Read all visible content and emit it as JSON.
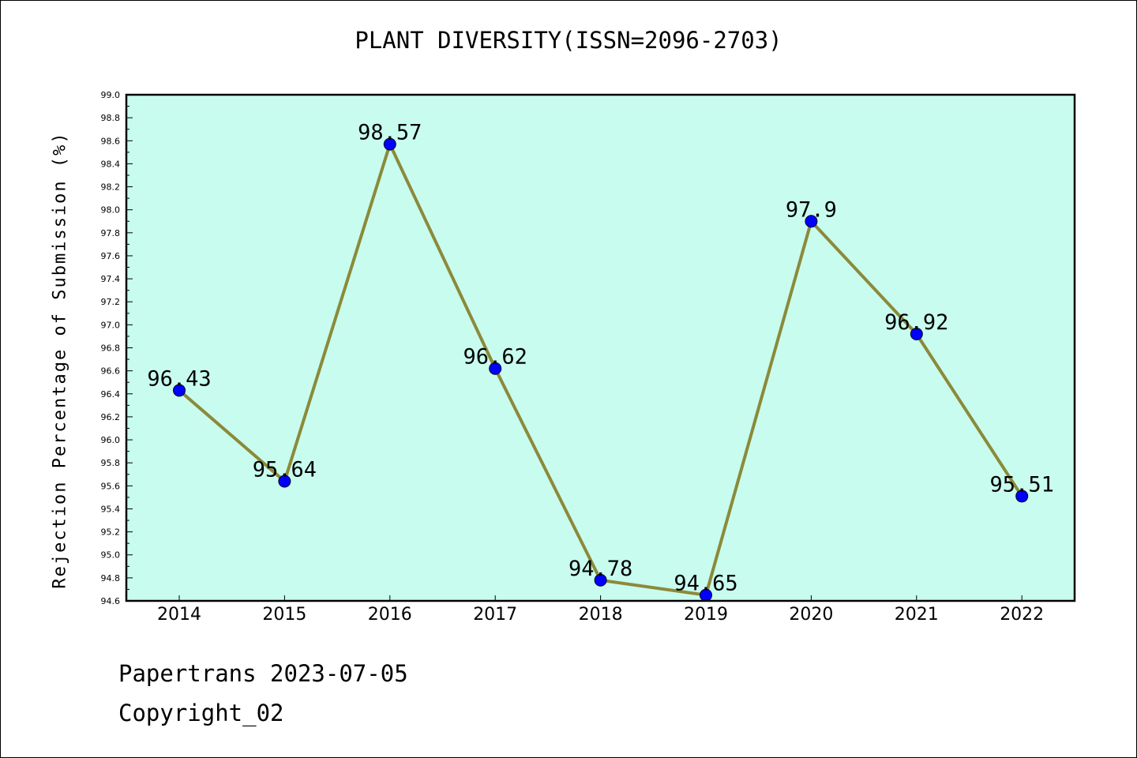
{
  "chart_data": {
    "type": "line",
    "title": "PLANT DIVERSITY(ISSN=2096-2703)",
    "xlabel": "",
    "ylabel": "Rejection Percentage of Submission (%)",
    "categories": [
      "2014",
      "2015",
      "2016",
      "2017",
      "2018",
      "2019",
      "2020",
      "2021",
      "2022"
    ],
    "values": [
      96.43,
      95.64,
      98.57,
      96.62,
      94.78,
      94.65,
      97.9,
      96.92,
      95.51
    ],
    "data_labels": [
      "96.43",
      "95.64",
      "98.57",
      "96.62",
      "94.78",
      "94.65",
      "97.9",
      "96.92",
      "95.51"
    ],
    "ylim": [
      94.6,
      99.0
    ],
    "y_ticks": [
      "94.6",
      "94.8",
      "95.0",
      "95.2",
      "95.4",
      "95.6",
      "95.8",
      "96.0",
      "96.2",
      "96.4",
      "96.6",
      "96.8",
      "97.0",
      "97.2",
      "97.4",
      "97.6",
      "97.8",
      "98.0",
      "98.2",
      "98.4",
      "98.6",
      "98.8",
      "99.0"
    ],
    "grid": false,
    "legend": "none",
    "colors": {
      "plot_background": "#c8fcee",
      "line": "#8b8a3a",
      "marker": "#0000ff"
    }
  },
  "footer": {
    "line1": "Papertrans 2023-07-05",
    "line2": "Copyright_02"
  }
}
